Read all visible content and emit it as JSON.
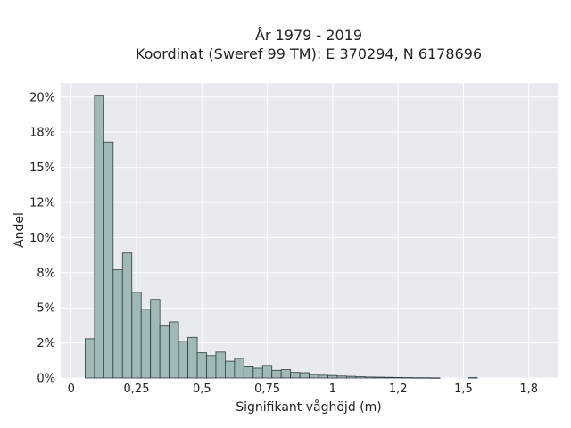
{
  "chart_data": {
    "type": "bar",
    "title": "År 1979 - 2019",
    "subtitle": "Koordinat (Sweref 99 TM): E 370294, N 6178696",
    "xlabel": "Signifikant våghöjd (m)",
    "ylabel": "Andel",
    "xlim": [
      -0.04,
      1.86
    ],
    "ylim": [
      0,
      21
    ],
    "grid": true,
    "colors": {
      "bar": "#9fb8b8",
      "bar_edge": "#2f3d3d",
      "plot_bg": "#e9e9f0",
      "grid": "#ffffff"
    },
    "bin_width": 0.0357,
    "bins": [
      {
        "x": 0.0714,
        "y": 2.8
      },
      {
        "x": 0.1071,
        "y": 20.1
      },
      {
        "x": 0.1428,
        "y": 16.8
      },
      {
        "x": 0.1785,
        "y": 7.7
      },
      {
        "x": 0.2142,
        "y": 8.9
      },
      {
        "x": 0.2499,
        "y": 6.1
      },
      {
        "x": 0.2856,
        "y": 4.9
      },
      {
        "x": 0.3213,
        "y": 5.6
      },
      {
        "x": 0.357,
        "y": 3.7
      },
      {
        "x": 0.3927,
        "y": 4.0
      },
      {
        "x": 0.4284,
        "y": 2.6
      },
      {
        "x": 0.4641,
        "y": 2.9
      },
      {
        "x": 0.4998,
        "y": 1.8
      },
      {
        "x": 0.5355,
        "y": 1.6
      },
      {
        "x": 0.5712,
        "y": 1.85
      },
      {
        "x": 0.6069,
        "y": 1.2
      },
      {
        "x": 0.6426,
        "y": 1.4
      },
      {
        "x": 0.6783,
        "y": 0.8
      },
      {
        "x": 0.714,
        "y": 0.7
      },
      {
        "x": 0.7497,
        "y": 0.9
      },
      {
        "x": 0.7854,
        "y": 0.55
      },
      {
        "x": 0.8211,
        "y": 0.6
      },
      {
        "x": 0.8568,
        "y": 0.4
      },
      {
        "x": 0.8925,
        "y": 0.38
      },
      {
        "x": 0.9282,
        "y": 0.25
      },
      {
        "x": 0.9639,
        "y": 0.2
      },
      {
        "x": 0.9996,
        "y": 0.18
      },
      {
        "x": 1.0353,
        "y": 0.14
      },
      {
        "x": 1.071,
        "y": 0.12
      },
      {
        "x": 1.1067,
        "y": 0.09
      },
      {
        "x": 1.1424,
        "y": 0.07
      },
      {
        "x": 1.1781,
        "y": 0.06
      },
      {
        "x": 1.2138,
        "y": 0.05
      },
      {
        "x": 1.2495,
        "y": 0.04
      },
      {
        "x": 1.2852,
        "y": 0.03
      },
      {
        "x": 1.3209,
        "y": 0.02
      },
      {
        "x": 1.3566,
        "y": 0.02
      },
      {
        "x": 1.3923,
        "y": 0.01
      },
      {
        "x": 1.5351,
        "y": 0.03
      }
    ],
    "x_ticks": [
      {
        "value": 0,
        "label": "0"
      },
      {
        "value": 0.25,
        "label": "0,25"
      },
      {
        "value": 0.5,
        "label": "0,5"
      },
      {
        "value": 0.75,
        "label": "0,75"
      },
      {
        "value": 1.0,
        "label": "1"
      },
      {
        "value": 1.25,
        "label": "1,2"
      },
      {
        "value": 1.5,
        "label": "1,5"
      },
      {
        "value": 1.75,
        "label": "1,8"
      }
    ],
    "y_ticks": [
      {
        "value": 0,
        "label": "0%"
      },
      {
        "value": 2.5,
        "label": "2%"
      },
      {
        "value": 5,
        "label": "5%"
      },
      {
        "value": 7.5,
        "label": "8%"
      },
      {
        "value": 10,
        "label": "10%"
      },
      {
        "value": 12.5,
        "label": "12%"
      },
      {
        "value": 15,
        "label": "15%"
      },
      {
        "value": 17.5,
        "label": "18%"
      },
      {
        "value": 20,
        "label": "20%"
      }
    ]
  }
}
